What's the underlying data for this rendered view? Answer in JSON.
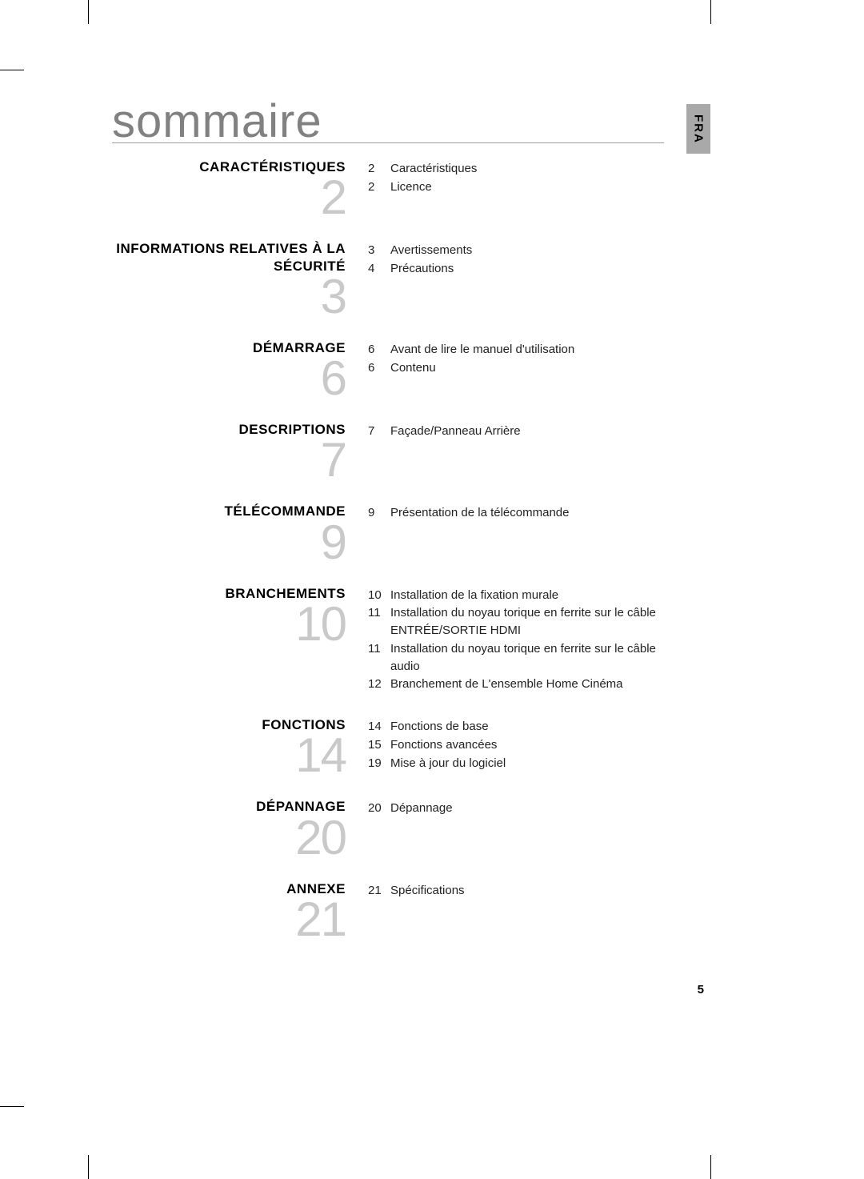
{
  "lang_tab": "FRA",
  "title": "sommaire",
  "page_number": "5",
  "colors": {
    "title_color": "#818181",
    "bignum_color": "#c9c9c9",
    "tab_bg": "#a9a9a9",
    "rule_color": "#9c9c9c",
    "text_color": "#222222"
  },
  "sections": [
    {
      "title": "CARACTÉRISTIQUES",
      "number": "2",
      "entries": [
        {
          "page": "2",
          "text": "Caractéristiques"
        },
        {
          "page": "2",
          "text": "Licence"
        }
      ]
    },
    {
      "title": "INFORMATIONS RELATIVES À LA SÉCURITÉ",
      "number": "3",
      "entries": [
        {
          "page": "3",
          "text": "Avertissements"
        },
        {
          "page": "4",
          "text": "Précautions"
        }
      ]
    },
    {
      "title": "DÉMARRAGE",
      "number": "6",
      "entries": [
        {
          "page": "6",
          "text": "Avant de lire le manuel d'utilisation"
        },
        {
          "page": "6",
          "text": "Contenu"
        }
      ]
    },
    {
      "title": "DESCRIPTIONS",
      "number": "7",
      "entries": [
        {
          "page": "7",
          "text": "Façade/Panneau Arrière"
        }
      ]
    },
    {
      "title": "TÉLÉCOMMANDE",
      "number": "9",
      "entries": [
        {
          "page": "9",
          "text": "Présentation de la télécommande"
        }
      ]
    },
    {
      "title": "BRANCHEMENTS",
      "number": "10",
      "entries": [
        {
          "page": "10",
          "text": "Installation de la fixation murale"
        },
        {
          "page": "11",
          "text": "Installation du noyau torique en ferrite sur le câble ENTRÉE/SORTIE HDMI"
        },
        {
          "page": "11",
          "text": "Installation du noyau torique en ferrite sur le câble audio"
        },
        {
          "page": "12",
          "text": "Branchement de L'ensemble Home Cinéma"
        }
      ]
    },
    {
      "title": "FONCTIONS",
      "number": "14",
      "entries": [
        {
          "page": "14",
          "text": "Fonctions de base"
        },
        {
          "page": "15",
          "text": "Fonctions avancées"
        },
        {
          "page": "19",
          "text": "Mise à jour du logiciel"
        }
      ]
    },
    {
      "title": "DÉPANNAGE",
      "number": "20",
      "entries": [
        {
          "page": "20",
          "text": "Dépannage"
        }
      ]
    },
    {
      "title": "ANNEXE",
      "number": "21",
      "entries": [
        {
          "page": "21",
          "text": "Spécifications"
        }
      ]
    }
  ]
}
